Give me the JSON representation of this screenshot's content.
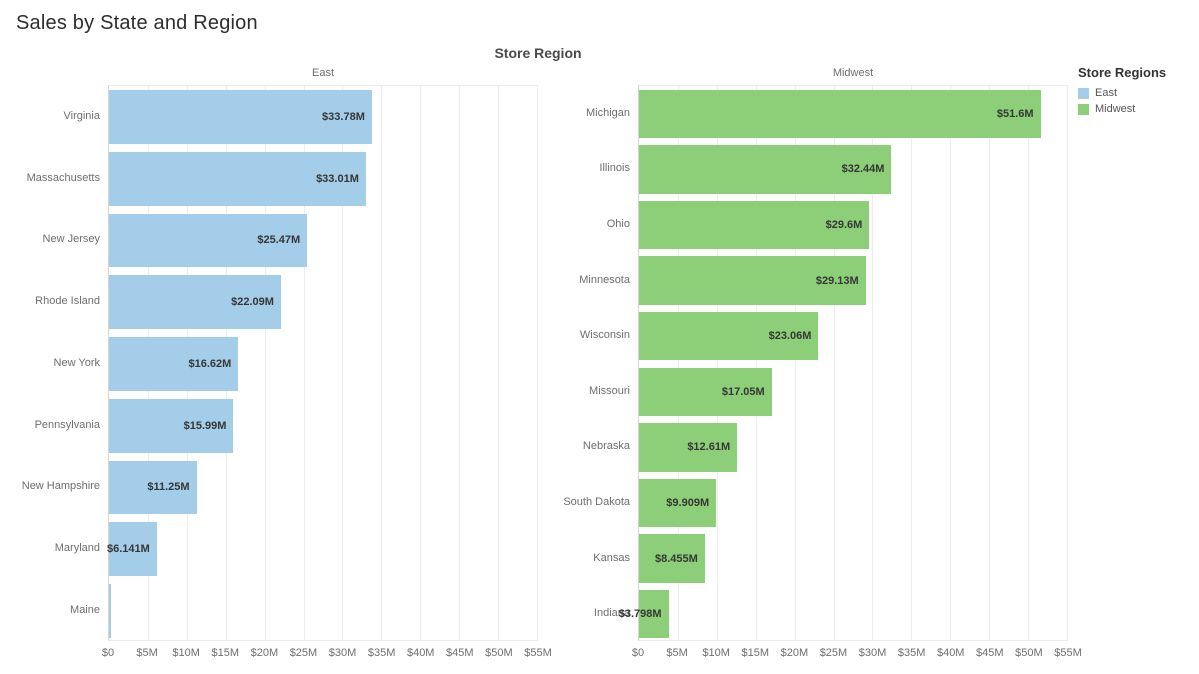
{
  "page_title": "Sales by State and Region",
  "chart_title": "Store Region",
  "legend": {
    "title": "Store Regions",
    "items": [
      {
        "label": "East",
        "color": "#a3cde8"
      },
      {
        "label": "Midwest",
        "color": "#8ccf78"
      }
    ]
  },
  "chart_data": {
    "type": "bar",
    "orientation": "horizontal",
    "title": "Store Region",
    "unit": "USD millions",
    "xlim": [
      0,
      55
    ],
    "x_ticks": [
      "$0",
      "$5M",
      "$10M",
      "$15M",
      "$20M",
      "$25M",
      "$30M",
      "$35M",
      "$40M",
      "$45M",
      "$50M",
      "$55M"
    ],
    "x_tick_values": [
      0,
      5,
      10,
      15,
      20,
      25,
      30,
      35,
      40,
      45,
      50,
      55
    ],
    "grid": true,
    "legend_position": "right",
    "panels": [
      {
        "name": "East",
        "color": "#a3cde8",
        "categories": [
          "Virginia",
          "Massachusetts",
          "New Jersey",
          "Rhode Island",
          "New York",
          "Pennsylvania",
          "New Hampshire",
          "Maryland",
          "Maine"
        ],
        "values": [
          33.78,
          33.01,
          25.47,
          22.09,
          16.62,
          15.99,
          11.25,
          6.141,
          0.3
        ],
        "labels": [
          "$33.78M",
          "$33.01M",
          "$25.47M",
          "$22.09M",
          "$16.62M",
          "$15.99M",
          "$11.25M",
          "$6.141M",
          ""
        ]
      },
      {
        "name": "Midwest",
        "color": "#8ccf78",
        "categories": [
          "Michigan",
          "Illinois",
          "Ohio",
          "Minnesota",
          "Wisconsin",
          "Missouri",
          "Nebraska",
          "South Dakota",
          "Kansas",
          "Indiana"
        ],
        "values": [
          51.6,
          32.44,
          29.6,
          29.13,
          23.06,
          17.05,
          12.61,
          9.909,
          8.455,
          3.798
        ],
        "labels": [
          "$51.6M",
          "$32.44M",
          "$29.6M",
          "$29.13M",
          "$23.06M",
          "$17.05M",
          "$12.61M",
          "$9.909M",
          "$8.455M",
          "$3.798M"
        ]
      }
    ]
  }
}
